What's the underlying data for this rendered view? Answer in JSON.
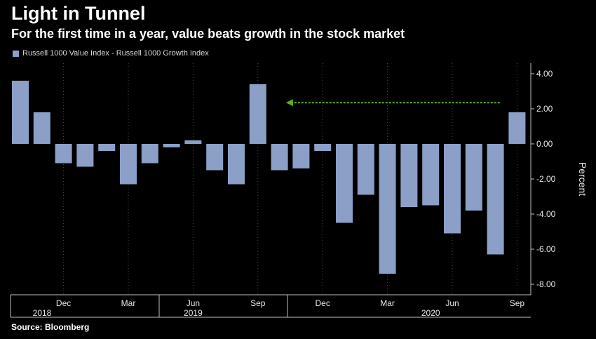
{
  "header": {
    "title": "Light in Tunnel",
    "subtitle": "For the first time in a year, value beats growth in the stock market"
  },
  "legend": {
    "label": "Russell 1000 Value Index - Russell 1000 Growth Index",
    "color": "#8c9fc7"
  },
  "footer": {
    "source": "Source: Bloomberg"
  },
  "chart_data": {
    "type": "bar",
    "series": [
      {
        "name": "Russell 1000 Value Index - Russell 1000 Growth Index",
        "values": [
          3.6,
          1.8,
          -1.1,
          -1.3,
          -0.4,
          -2.3,
          -1.1,
          -0.2,
          0.2,
          -1.5,
          -2.3,
          3.4,
          -1.5,
          -1.4,
          -0.4,
          -4.5,
          -2.9,
          -7.4,
          -3.6,
          -3.5,
          -5.1,
          -3.8,
          -6.3,
          1.8
        ]
      }
    ],
    "month_ticks": [
      {
        "label": "Dec",
        "index": 2
      },
      {
        "label": "Mar",
        "index": 5
      },
      {
        "label": "Jun",
        "index": 8
      },
      {
        "label": "Sep",
        "index": 11
      },
      {
        "label": "Dec",
        "index": 14
      },
      {
        "label": "Mar",
        "index": 17
      },
      {
        "label": "Jun",
        "index": 20
      },
      {
        "label": "Sep",
        "index": 23
      }
    ],
    "year_ticks": [
      {
        "label": "2018",
        "index": 1
      },
      {
        "label": "2019",
        "index": 8
      },
      {
        "label": "2020",
        "index": 19
      }
    ],
    "ylim": [
      -8.6,
      4.6
    ],
    "yticks": [
      4,
      2,
      0,
      -2,
      -4,
      -6,
      -8
    ],
    "ytick_labels": [
      "4.00",
      "2.00",
      "0.00",
      "-2.00",
      "-4.00",
      "-6.00",
      "-8.00"
    ],
    "ylabel": "Percent",
    "y_axis_position": "right",
    "grid": "vertical dotted",
    "annotation": {
      "type": "arrow",
      "from_index": 22.2,
      "to_index": 12.3,
      "y_value": 2.35,
      "color": "#5db21b"
    },
    "bar_color": "#8c9fc7"
  }
}
